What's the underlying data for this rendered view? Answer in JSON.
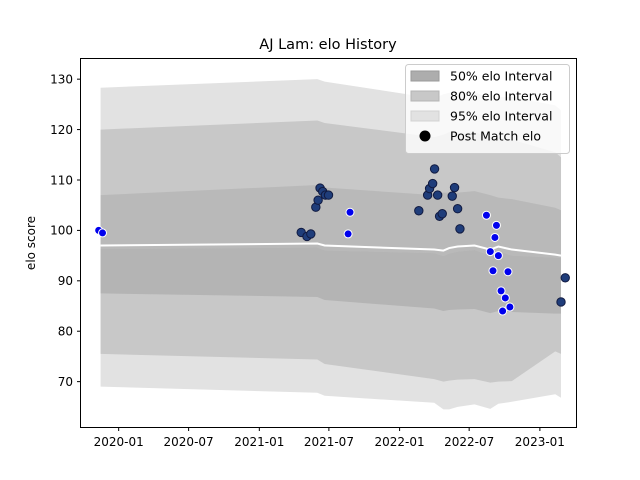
{
  "chart_data": {
    "type": "scatter",
    "title": "AJ Lam: elo History",
    "xlabel": "",
    "ylabel": "elo score",
    "x_axis": {
      "type": "date",
      "range": [
        "2019-09-25",
        "2023-04-05"
      ],
      "ticks": [
        "2020-01-01",
        "2020-07-01",
        "2021-01-01",
        "2021-07-01",
        "2022-01-01",
        "2022-07-01",
        "2023-01-01"
      ],
      "tick_labels": [
        "2020-01",
        "2020-07",
        "2021-01",
        "2021-07",
        "2022-01",
        "2022-07",
        "2023-01"
      ]
    },
    "y_axis": {
      "range": [
        61,
        134
      ],
      "ticks": [
        70,
        80,
        90,
        100,
        110,
        120,
        130
      ],
      "tick_labels": [
        "70",
        "80",
        "90",
        "100",
        "110",
        "120",
        "130"
      ]
    },
    "grid": false,
    "legend_position": "upper-right",
    "legend": [
      {
        "label": "50% elo Interval",
        "color": "#adadad"
      },
      {
        "label": "80% elo Interval",
        "color": "#c8c8c8"
      },
      {
        "label": "95% elo Interval",
        "color": "#e2e2e2"
      },
      {
        "label": "Post Match elo",
        "color": "#000000"
      }
    ],
    "colors": {
      "band95": "#e2e2e2",
      "band80": "#c8c8c8",
      "band50": "#adadad",
      "mean_line": "#ffffff",
      "point_fill_dark": "#1f3d7a",
      "point_fill_blue": "#0000ee",
      "point_edge_dark": "#111a40",
      "point_edge_white": "#ffffff"
    },
    "bands": {
      "x": [
        "2019-11-15",
        "2021-06-01",
        "2021-06-20",
        "2022-04-01",
        "2022-04-25",
        "2022-05-10",
        "2022-06-01",
        "2022-07-15",
        "2022-08-25",
        "2022-09-15",
        "2022-10-20",
        "2023-02-10",
        "2023-02-25"
      ],
      "mean": [
        97.0,
        97.4,
        97.0,
        96.2,
        96.0,
        96.5,
        96.8,
        97.0,
        96.2,
        96.8,
        96.2,
        95.2,
        95.0
      ],
      "p50": {
        "low": [
          96.3,
          96.6,
          96.0,
          95.5,
          94.9,
          95.4,
          95.8,
          96.1,
          95.0,
          95.9,
          95.0,
          94.6,
          94.5
        ],
        "high": [
          107.0,
          109.0,
          108.5,
          107.0,
          107.5,
          107.5,
          107.5,
          107.8,
          107.0,
          106.5,
          106.2,
          104.5,
          104.0
        ]
      },
      "p80": {
        "low": [
          87.5,
          86.8,
          86.2,
          84.5,
          84.0,
          84.2,
          84.3,
          84.4,
          83.6,
          84.0,
          83.8,
          83.5,
          83.5
        ],
        "high": [
          120.0,
          121.8,
          121.3,
          118.5,
          119.0,
          119.5,
          119.3,
          119.5,
          118.5,
          118.4,
          118.0,
          115.5,
          114.5
        ]
      },
      "p80_low2": [
        75.5,
        74.4,
        73.5,
        70.5,
        70.0,
        70.2,
        70.4,
        70.5,
        69.8,
        70.0,
        70.1,
        76.0,
        75.5
      ],
      "p95_low": [
        69.0,
        67.8,
        67.2,
        65.8,
        64.5,
        64.5,
        65.0,
        65.5,
        64.6,
        65.6,
        66.0,
        67.5,
        66.8
      ],
      "p95_high": [
        128.3,
        130.0,
        129.5,
        126.2,
        127.0,
        127.3,
        127.2,
        127.5,
        126.0,
        126.4,
        126.5,
        124.8,
        123.8
      ]
    },
    "points": [
      {
        "x": "2019-11-10",
        "y": 100.0,
        "style": "blue"
      },
      {
        "x": "2019-11-20",
        "y": 99.5,
        "style": "blue"
      },
      {
        "x": "2021-04-20",
        "y": 99.6,
        "style": "dark"
      },
      {
        "x": "2021-05-05",
        "y": 98.8,
        "style": "dark"
      },
      {
        "x": "2021-05-15",
        "y": 99.3,
        "style": "dark"
      },
      {
        "x": "2021-05-28",
        "y": 104.6,
        "style": "dark"
      },
      {
        "x": "2021-06-03",
        "y": 106.0,
        "style": "dark"
      },
      {
        "x": "2021-06-08",
        "y": 108.4,
        "style": "dark"
      },
      {
        "x": "2021-06-15",
        "y": 107.7,
        "style": "dark"
      },
      {
        "x": "2021-06-22",
        "y": 107.0,
        "style": "dark"
      },
      {
        "x": "2021-06-30",
        "y": 107.0,
        "style": "dark"
      },
      {
        "x": "2021-08-20",
        "y": 99.3,
        "style": "blue"
      },
      {
        "x": "2021-08-25",
        "y": 103.6,
        "style": "blue"
      },
      {
        "x": "2022-02-20",
        "y": 103.9,
        "style": "dark"
      },
      {
        "x": "2022-03-15",
        "y": 107.0,
        "style": "dark"
      },
      {
        "x": "2022-03-20",
        "y": 108.3,
        "style": "dark"
      },
      {
        "x": "2022-03-28",
        "y": 109.3,
        "style": "dark"
      },
      {
        "x": "2022-04-02",
        "y": 112.2,
        "style": "dark"
      },
      {
        "x": "2022-04-10",
        "y": 107.0,
        "style": "dark"
      },
      {
        "x": "2022-04-15",
        "y": 102.8,
        "style": "dark"
      },
      {
        "x": "2022-04-22",
        "y": 103.3,
        "style": "dark"
      },
      {
        "x": "2022-05-18",
        "y": 106.8,
        "style": "dark"
      },
      {
        "x": "2022-05-24",
        "y": 108.5,
        "style": "dark"
      },
      {
        "x": "2022-06-01",
        "y": 104.3,
        "style": "dark"
      },
      {
        "x": "2022-06-07",
        "y": 100.3,
        "style": "dark"
      },
      {
        "x": "2022-08-15",
        "y": 103.0,
        "style": "blue"
      },
      {
        "x": "2022-08-25",
        "y": 95.8,
        "style": "blue"
      },
      {
        "x": "2022-09-01",
        "y": 92.0,
        "style": "blue"
      },
      {
        "x": "2022-09-06",
        "y": 98.6,
        "style": "blue"
      },
      {
        "x": "2022-09-10",
        "y": 101.0,
        "style": "blue"
      },
      {
        "x": "2022-09-15",
        "y": 95.0,
        "style": "blue"
      },
      {
        "x": "2022-09-22",
        "y": 88.0,
        "style": "blue"
      },
      {
        "x": "2022-09-26",
        "y": 84.0,
        "style": "blue"
      },
      {
        "x": "2022-10-03",
        "y": 86.6,
        "style": "blue"
      },
      {
        "x": "2022-10-10",
        "y": 91.8,
        "style": "blue"
      },
      {
        "x": "2022-10-15",
        "y": 84.8,
        "style": "blue"
      },
      {
        "x": "2023-02-25",
        "y": 85.8,
        "style": "dark"
      },
      {
        "x": "2023-03-08",
        "y": 90.6,
        "style": "dark"
      }
    ]
  }
}
